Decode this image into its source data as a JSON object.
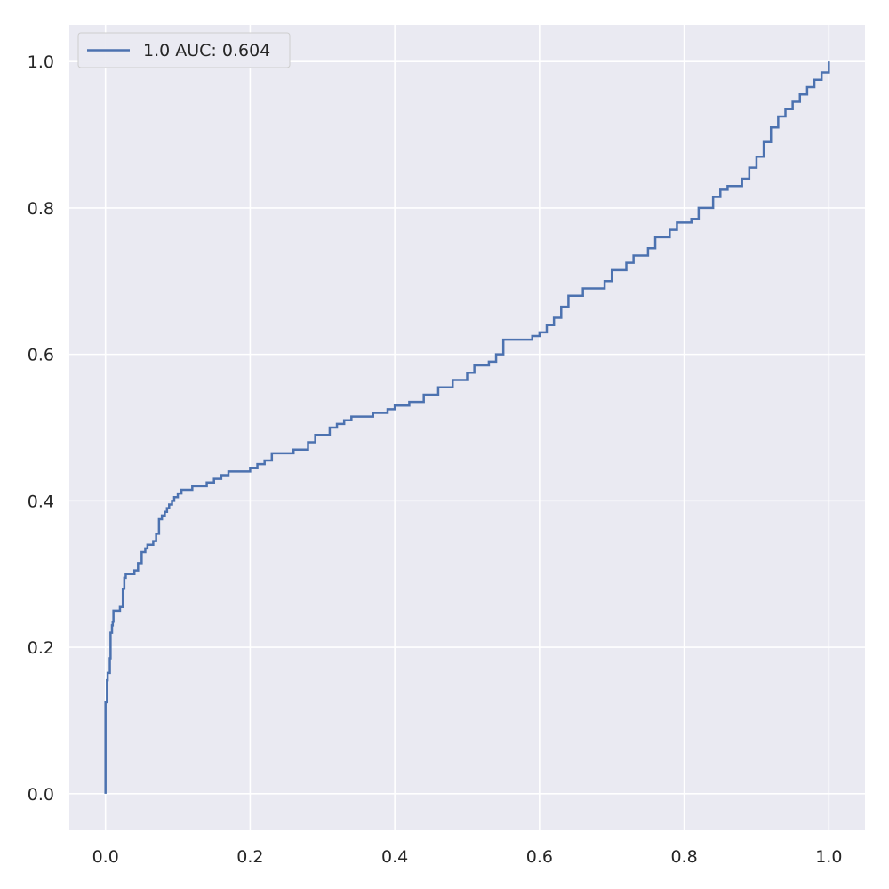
{
  "chart_data": {
    "type": "line",
    "title": "",
    "xlabel": "",
    "ylabel": "",
    "xlim": [
      -0.05,
      1.05
    ],
    "ylim": [
      -0.05,
      1.05
    ],
    "grid": true,
    "legend_position": "top-left",
    "x_ticks": [
      {
        "value": 0.0,
        "label": "0.0"
      },
      {
        "value": 0.2,
        "label": "0.2"
      },
      {
        "value": 0.4,
        "label": "0.4"
      },
      {
        "value": 0.6,
        "label": "0.6"
      },
      {
        "value": 0.8,
        "label": "0.8"
      },
      {
        "value": 1.0,
        "label": "1.0"
      }
    ],
    "y_ticks": [
      {
        "value": 0.0,
        "label": "0.0"
      },
      {
        "value": 0.2,
        "label": "0.2"
      },
      {
        "value": 0.4,
        "label": "0.4"
      },
      {
        "value": 0.6,
        "label": "0.6"
      },
      {
        "value": 0.8,
        "label": "0.8"
      },
      {
        "value": 1.0,
        "label": "1.0"
      }
    ],
    "colors": {
      "background": "#eaeaf2",
      "grid": "#ffffff",
      "series": "#4c72b0"
    },
    "series": [
      {
        "name": "1.0 AUC: 0.604",
        "x": [
          0.0,
          0.0,
          0.002,
          0.002,
          0.003,
          0.004,
          0.006,
          0.007,
          0.009,
          0.009,
          0.01,
          0.011,
          0.013,
          0.014,
          0.016,
          0.02,
          0.024,
          0.026,
          0.028,
          0.03,
          0.035,
          0.04,
          0.045,
          0.05,
          0.055,
          0.058,
          0.062,
          0.066,
          0.07,
          0.074,
          0.078,
          0.082,
          0.085,
          0.088,
          0.092,
          0.095,
          0.1,
          0.105,
          0.11,
          0.115,
          0.12,
          0.13,
          0.14,
          0.15,
          0.16,
          0.17,
          0.18,
          0.19,
          0.2,
          0.21,
          0.22,
          0.23,
          0.24,
          0.26,
          0.28,
          0.29,
          0.3,
          0.31,
          0.32,
          0.33,
          0.34,
          0.35,
          0.37,
          0.39,
          0.4,
          0.42,
          0.44,
          0.46,
          0.48,
          0.5,
          0.51,
          0.53,
          0.54,
          0.55,
          0.57,
          0.58,
          0.59,
          0.6,
          0.61,
          0.62,
          0.63,
          0.64,
          0.66,
          0.68,
          0.69,
          0.7,
          0.72,
          0.73,
          0.75,
          0.76,
          0.78,
          0.79,
          0.81,
          0.82,
          0.84,
          0.85,
          0.86,
          0.88,
          0.89,
          0.9,
          0.91,
          0.92,
          0.93,
          0.94,
          0.95,
          0.96,
          0.97,
          0.98,
          0.99,
          1.0,
          1.0
        ],
        "y": [
          0.0,
          0.125,
          0.125,
          0.155,
          0.165,
          0.165,
          0.185,
          0.22,
          0.22,
          0.23,
          0.235,
          0.25,
          0.25,
          0.25,
          0.25,
          0.255,
          0.28,
          0.295,
          0.3,
          0.3,
          0.3,
          0.305,
          0.315,
          0.33,
          0.335,
          0.34,
          0.34,
          0.345,
          0.355,
          0.375,
          0.38,
          0.385,
          0.39,
          0.395,
          0.4,
          0.405,
          0.41,
          0.415,
          0.415,
          0.415,
          0.42,
          0.42,
          0.425,
          0.43,
          0.435,
          0.44,
          0.44,
          0.44,
          0.445,
          0.45,
          0.455,
          0.465,
          0.465,
          0.47,
          0.48,
          0.49,
          0.49,
          0.5,
          0.505,
          0.51,
          0.515,
          0.515,
          0.52,
          0.525,
          0.53,
          0.535,
          0.545,
          0.555,
          0.565,
          0.575,
          0.585,
          0.59,
          0.6,
          0.62,
          0.62,
          0.62,
          0.625,
          0.63,
          0.64,
          0.65,
          0.665,
          0.68,
          0.69,
          0.69,
          0.7,
          0.715,
          0.725,
          0.735,
          0.745,
          0.76,
          0.77,
          0.78,
          0.785,
          0.8,
          0.815,
          0.825,
          0.83,
          0.84,
          0.855,
          0.87,
          0.89,
          0.91,
          0.925,
          0.935,
          0.945,
          0.955,
          0.965,
          0.975,
          0.985,
          0.99,
          1.0
        ]
      }
    ]
  }
}
